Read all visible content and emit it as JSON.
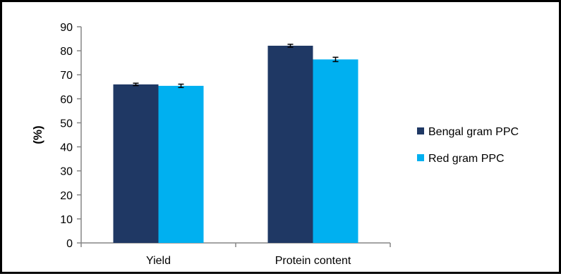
{
  "chart_data": {
    "type": "bar",
    "categories": [
      "Yield",
      "Protein content"
    ],
    "series": [
      {
        "name": "Bengal gram PPC",
        "color": "#1f3864",
        "values": [
          66.0,
          82.1
        ],
        "errors": [
          0.5,
          0.6
        ]
      },
      {
        "name": "Red gram PPC",
        "color": "#00b0f0",
        "values": [
          65.4,
          76.4
        ],
        "errors": [
          0.7,
          0.9
        ]
      }
    ],
    "ylabel": "(%)",
    "xlabel": "",
    "ylim": [
      0,
      90
    ],
    "yticks": [
      "0",
      "10",
      "20",
      "30",
      "40",
      "50",
      "60",
      "70",
      "80",
      "90"
    ],
    "grid": false,
    "legend": "right",
    "error_bars": true
  }
}
